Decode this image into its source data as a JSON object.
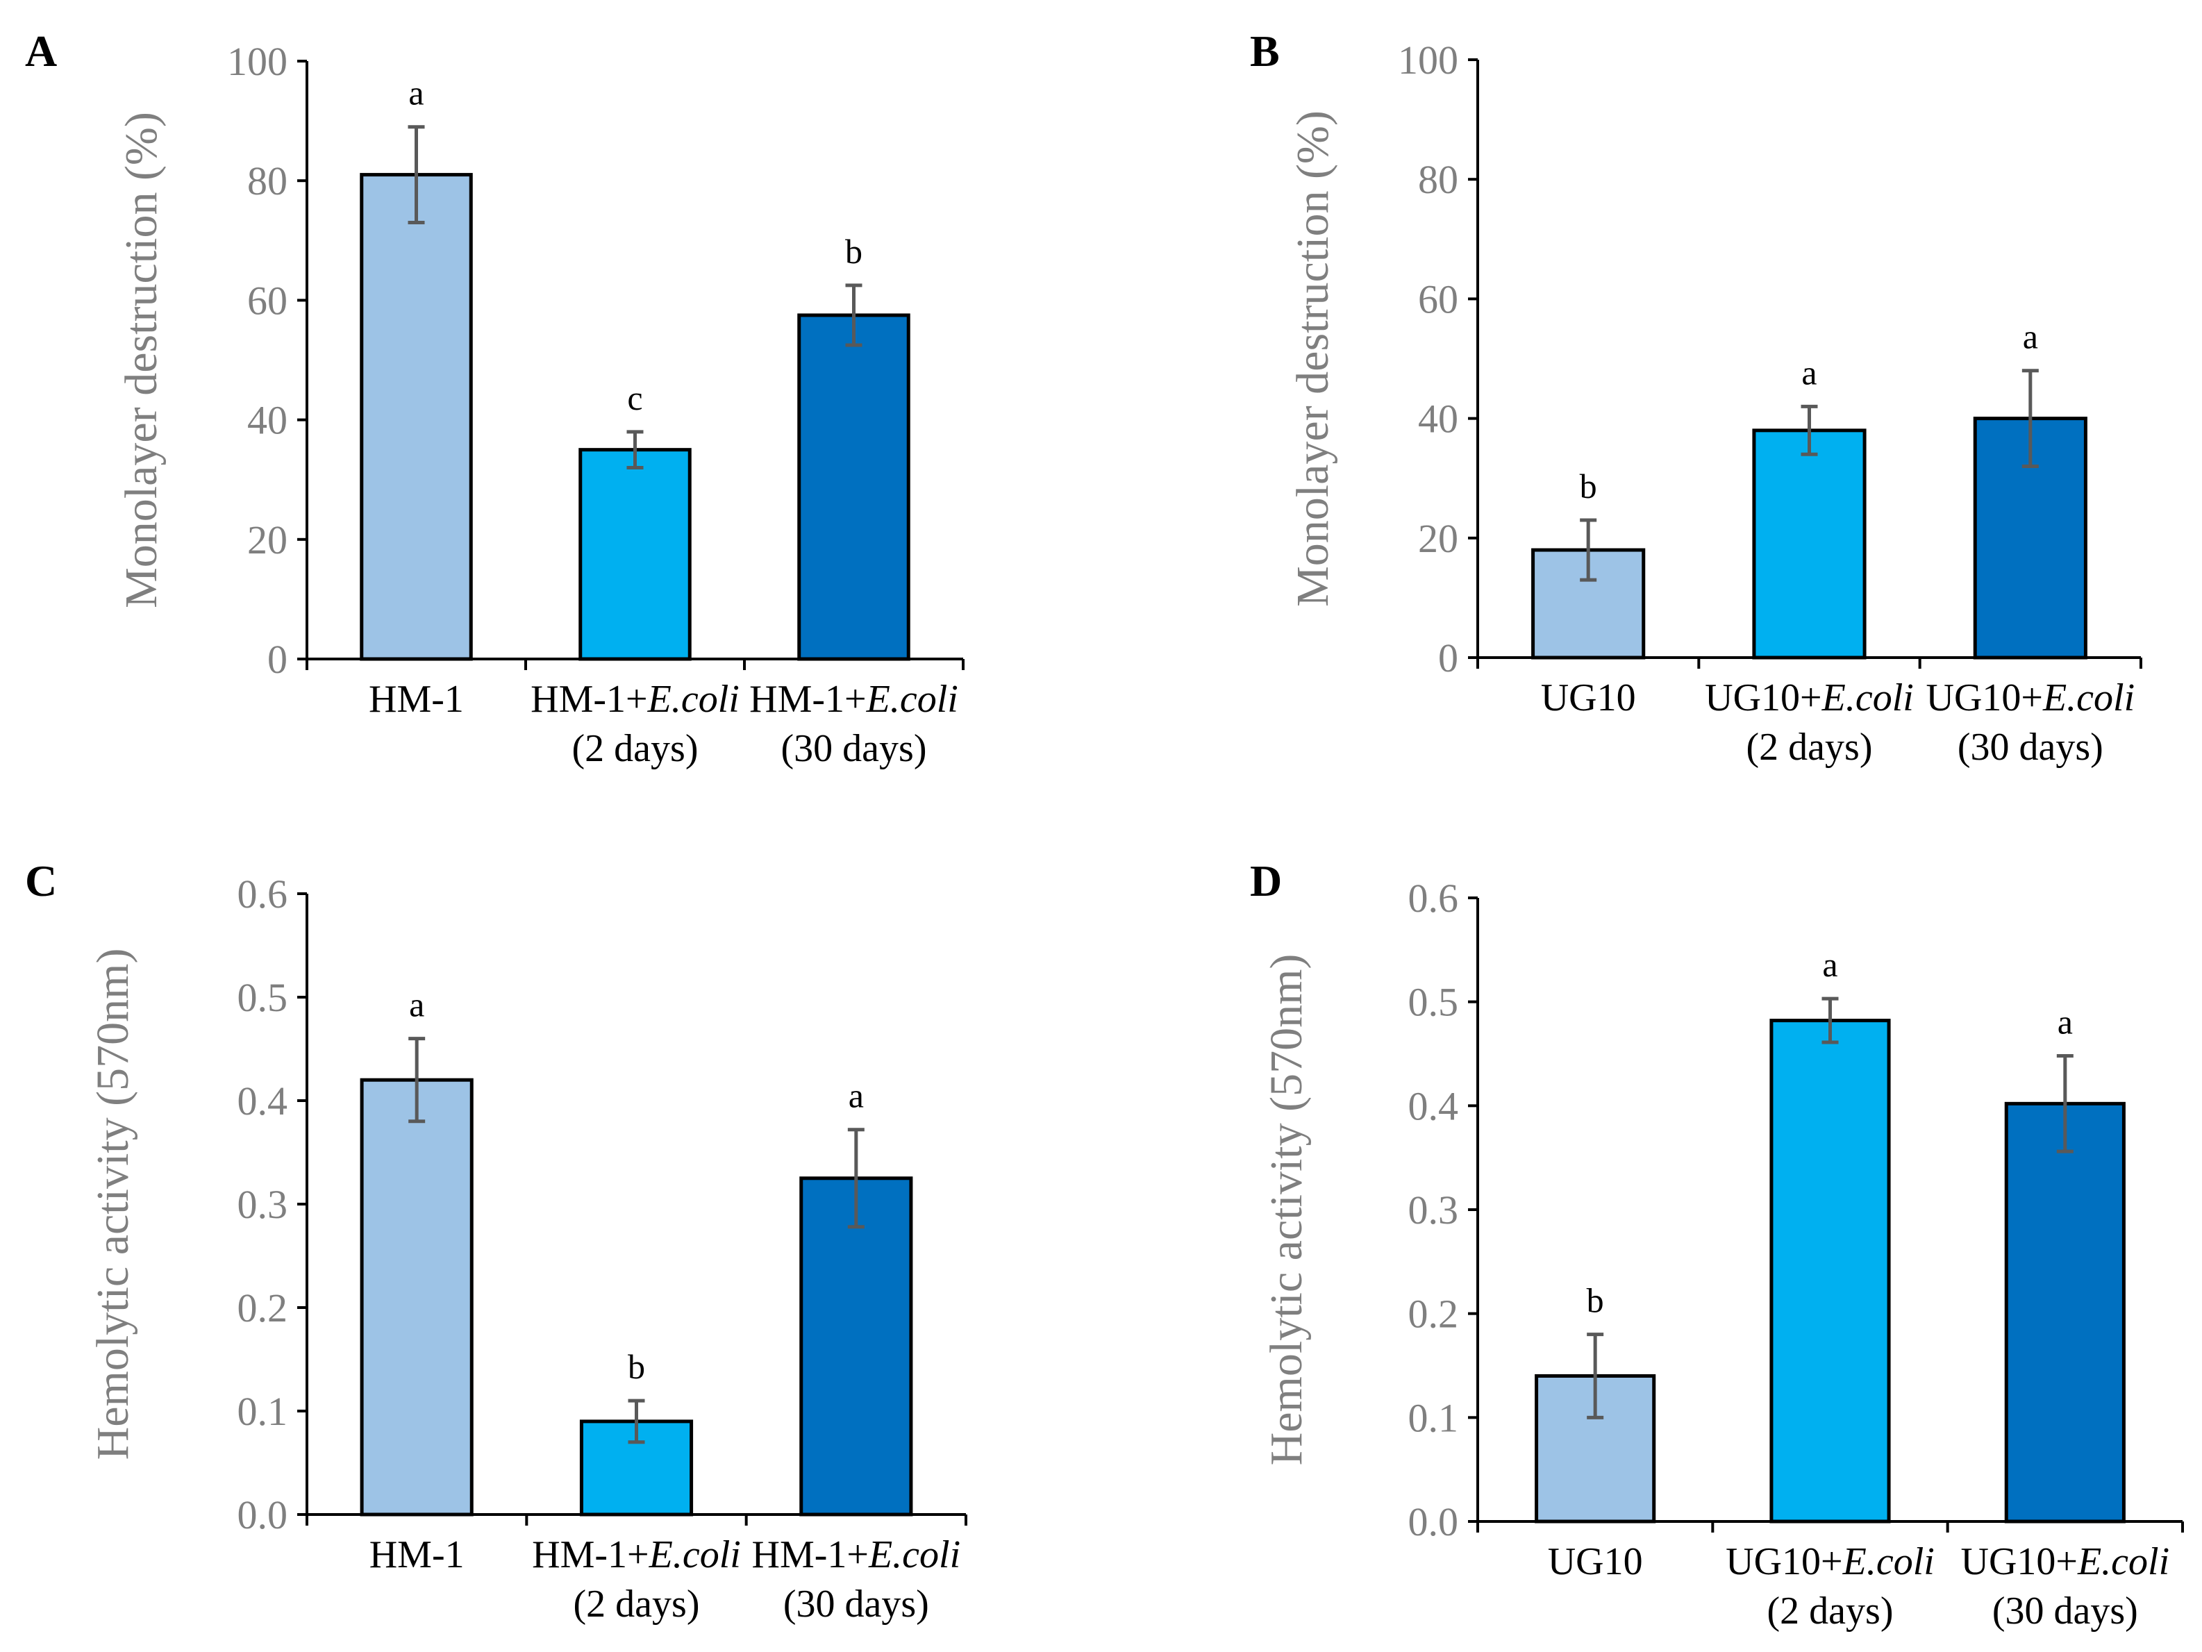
{
  "colors": {
    "series_1": "#9dc3e6",
    "series_2": "#00b0f0",
    "series_3": "#0070c0",
    "axis": "#000000",
    "tick_text": "#7f7f7f",
    "error_bar": "#595959"
  },
  "chart_data": [
    {
      "panel": "A",
      "type": "bar",
      "ylabel": "Monolayer destruction (%)",
      "ylim": [
        0,
        100
      ],
      "yticks": [
        "0",
        "20",
        "40",
        "60",
        "80",
        "100"
      ],
      "categories": [
        {
          "line1_prefix": "HM-1",
          "line1_italic": "",
          "line2": ""
        },
        {
          "line1_prefix": "HM-1+",
          "line1_italic": "E.coli",
          "line2": "(2 days)"
        },
        {
          "line1_prefix": "HM-1+",
          "line1_italic": "E.coli",
          "line2": "(30 days)"
        }
      ],
      "values": [
        81,
        35,
        57.5
      ],
      "errors": [
        8,
        3,
        5
      ],
      "significance": [
        "a",
        "c",
        "b"
      ]
    },
    {
      "panel": "B",
      "type": "bar",
      "ylabel": "Monolayer destruction (%)",
      "ylim": [
        0,
        100
      ],
      "yticks": [
        "0",
        "20",
        "40",
        "60",
        "80",
        "100"
      ],
      "categories": [
        {
          "line1_prefix": "UG10",
          "line1_italic": "",
          "line2": ""
        },
        {
          "line1_prefix": "UG10+",
          "line1_italic": "E.coli",
          "line2": "(2 days)"
        },
        {
          "line1_prefix": "UG10+",
          "line1_italic": "E.coli",
          "line2": "(30 days)"
        }
      ],
      "values": [
        18,
        38,
        40
      ],
      "errors": [
        5,
        4,
        8
      ],
      "significance": [
        "b",
        "a",
        "a"
      ]
    },
    {
      "panel": "C",
      "type": "bar",
      "ylabel": "Hemolytic activity (570nm)",
      "ylim": [
        0,
        0.6
      ],
      "yticks": [
        "0.0",
        "0.1",
        "0.2",
        "0.3",
        "0.4",
        "0.5",
        "0.6"
      ],
      "categories": [
        {
          "line1_prefix": "HM-1",
          "line1_italic": "",
          "line2": ""
        },
        {
          "line1_prefix": "HM-1+",
          "line1_italic": "E.coli",
          "line2": "(2 days)"
        },
        {
          "line1_prefix": "HM-1+",
          "line1_italic": "E.coli",
          "line2": "(30 days)"
        }
      ],
      "values": [
        0.42,
        0.09,
        0.325
      ],
      "errors": [
        0.04,
        0.02,
        0.047
      ],
      "significance": [
        "a",
        "b",
        "a"
      ]
    },
    {
      "panel": "D",
      "type": "bar",
      "ylabel": "Hemolytic activity (570nm)",
      "ylim": [
        0,
        0.6
      ],
      "yticks": [
        "0.0",
        "0.1",
        "0.2",
        "0.3",
        "0.4",
        "0.5",
        "0.6"
      ],
      "categories": [
        {
          "line1_prefix": "UG10",
          "line1_italic": "",
          "line2": ""
        },
        {
          "line1_prefix": "UG10+",
          "line1_italic": "E.coli",
          "line2": "(2 days)"
        },
        {
          "line1_prefix": "UG10+",
          "line1_italic": "E.coli",
          "line2": "(30 days)"
        }
      ],
      "values": [
        0.14,
        0.482,
        0.402
      ],
      "errors": [
        0.04,
        0.021,
        0.046
      ],
      "significance": [
        "b",
        "a",
        "a"
      ]
    }
  ]
}
